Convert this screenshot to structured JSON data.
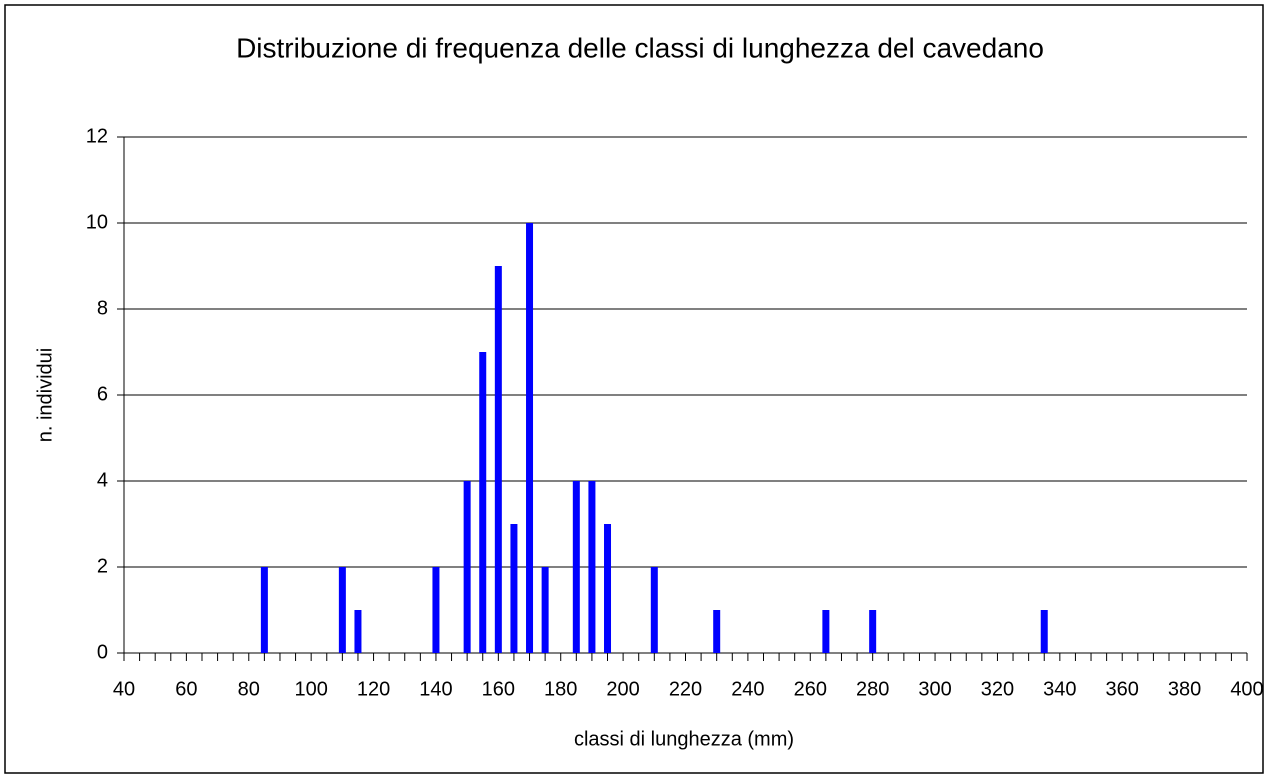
{
  "chart_data": {
    "type": "bar",
    "title": "Distribuzione di frequenza delle classi di lunghezza del cavedano",
    "xlabel": "classi di lunghezza (mm)",
    "ylabel": "n. individui",
    "x": [
      85,
      110,
      115,
      140,
      150,
      155,
      160,
      165,
      170,
      175,
      185,
      190,
      195,
      210,
      230,
      265,
      280,
      335
    ],
    "values": [
      2,
      2,
      1,
      2,
      4,
      7,
      9,
      3,
      10,
      2,
      4,
      4,
      3,
      2,
      1,
      1,
      1,
      1
    ],
    "color": "#0000ff",
    "xlim": [
      40,
      400
    ],
    "xticks": [
      40,
      60,
      80,
      100,
      120,
      140,
      160,
      180,
      200,
      220,
      240,
      260,
      280,
      300,
      320,
      340,
      360,
      380,
      400
    ],
    "xminorticks": [
      45,
      50,
      55,
      65,
      70,
      75,
      85,
      90,
      95,
      105,
      110,
      115,
      125,
      130,
      135,
      145,
      150,
      155,
      165,
      170,
      175,
      185,
      190,
      195,
      205,
      210,
      215,
      225,
      230,
      235,
      245,
      250,
      255,
      265,
      270,
      275,
      285,
      290,
      295,
      305,
      310,
      315,
      325,
      330,
      335,
      345,
      350,
      355,
      365,
      370,
      375,
      385,
      390,
      395
    ],
    "ylim": [
      0,
      12
    ],
    "yticks": [
      0,
      2,
      4,
      6,
      8,
      10,
      12
    ],
    "grid": true
  }
}
